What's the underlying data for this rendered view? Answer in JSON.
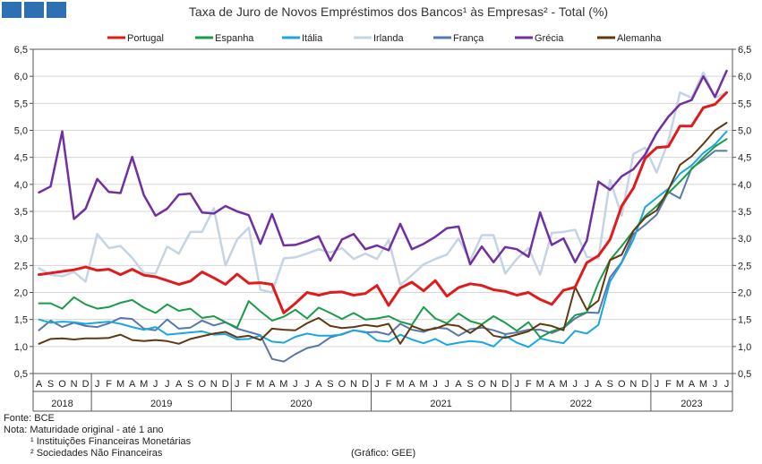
{
  "header": {
    "title": "Taxa de Juro de Novos Empréstimos dos Bancos¹ às Empresas² - Total (%)",
    "logo_color": "#2f6fb3"
  },
  "footer": {
    "source": "Fonte: BCE",
    "note": "Nota: Maturidade original - até 1 ano",
    "note1": "¹ Instituições Financeiras Monetárias",
    "note2": "² Sociedades Não Financeiras",
    "credit": "(Gráfico: GEE)"
  },
  "chart_data": {
    "type": "line",
    "title": "Taxa de Juro de Novos Empréstimos dos Bancos¹ às Empresas² - Total (%)",
    "ylim": [
      0.5,
      6.5
    ],
    "yticks": [
      "0,5",
      "1,0",
      "1,5",
      "2,0",
      "2,5",
      "3,0",
      "3,5",
      "4,0",
      "4,5",
      "5,0",
      "5,5",
      "6,0",
      "6,5"
    ],
    "grid": "horizontal",
    "legend_position": "top",
    "x": [
      "A",
      "S",
      "O",
      "N",
      "D",
      "J",
      "F",
      "M",
      "A",
      "M",
      "J",
      "J",
      "A",
      "S",
      "O",
      "N",
      "D",
      "J",
      "F",
      "M",
      "A",
      "M",
      "J",
      "J",
      "A",
      "S",
      "O",
      "N",
      "D",
      "J",
      "F",
      "M",
      "A",
      "M",
      "J",
      "J",
      "A",
      "S",
      "O",
      "N",
      "D",
      "J",
      "F",
      "M",
      "A",
      "M",
      "J",
      "J",
      "A",
      "S",
      "O",
      "N",
      "D",
      "J",
      "F",
      "M",
      "A",
      "M",
      "J",
      "J"
    ],
    "years": [
      {
        "label": "2018",
        "start": 0,
        "end": 4
      },
      {
        "label": "2019",
        "start": 5,
        "end": 16
      },
      {
        "label": "2020",
        "start": 17,
        "end": 28
      },
      {
        "label": "2021",
        "start": 29,
        "end": 40
      },
      {
        "label": "2022",
        "start": 41,
        "end": 52
      },
      {
        "label": "2023",
        "start": 53,
        "end": 59
      }
    ],
    "series": [
      {
        "name": "Portugal",
        "color": "#e01b1b",
        "width": 3,
        "values": [
          2.33,
          2.36,
          2.39,
          2.42,
          2.47,
          2.41,
          2.43,
          2.33,
          2.43,
          2.32,
          2.29,
          2.22,
          2.15,
          2.21,
          2.38,
          2.27,
          2.15,
          2.34,
          2.17,
          2.18,
          2.15,
          1.62,
          1.8,
          2.0,
          1.95,
          2.0,
          2.01,
          1.95,
          1.98,
          2.13,
          1.76,
          2.08,
          2.19,
          2.03,
          2.22,
          1.93,
          2.09,
          2.16,
          2.13,
          2.05,
          2.02,
          1.95,
          2.0,
          1.87,
          1.78,
          2.04,
          2.1,
          2.55,
          2.68,
          2.98,
          3.6,
          3.93,
          4.48,
          4.68,
          4.7,
          5.08,
          5.08,
          5.42,
          5.48,
          5.7
        ]
      },
      {
        "name": "Espanha",
        "color": "#1a9c48",
        "width": 2,
        "values": [
          1.8,
          1.8,
          1.7,
          1.91,
          1.78,
          1.7,
          1.73,
          1.81,
          1.86,
          1.72,
          1.62,
          1.78,
          1.66,
          1.7,
          1.53,
          1.56,
          1.45,
          1.35,
          1.84,
          1.65,
          1.48,
          1.55,
          1.68,
          1.52,
          1.72,
          1.62,
          1.51,
          1.62,
          1.5,
          1.52,
          1.56,
          1.46,
          1.4,
          1.73,
          1.52,
          1.43,
          1.61,
          1.47,
          1.41,
          1.56,
          1.44,
          1.29,
          1.45,
          1.17,
          1.28,
          1.35,
          1.58,
          1.63,
          2.18,
          2.6,
          2.86,
          3.14,
          3.41,
          3.6,
          3.84,
          4.05,
          4.28,
          4.5,
          4.7,
          4.84
        ]
      },
      {
        "name": "Itália",
        "color": "#1aa7e0",
        "width": 2,
        "values": [
          1.5,
          1.44,
          1.46,
          1.45,
          1.42,
          1.44,
          1.46,
          1.42,
          1.36,
          1.31,
          1.36,
          1.22,
          1.24,
          1.26,
          1.28,
          1.22,
          1.23,
          1.13,
          1.14,
          1.2,
          1.09,
          1.07,
          1.18,
          1.24,
          1.2,
          1.2,
          1.22,
          1.3,
          1.27,
          1.11,
          1.09,
          1.22,
          1.13,
          1.06,
          1.14,
          1.03,
          1.07,
          1.1,
          1.08,
          1.0,
          1.2,
          1.07,
          0.99,
          1.15,
          1.1,
          1.06,
          1.29,
          1.24,
          1.4,
          2.2,
          2.55,
          2.98,
          3.58,
          3.75,
          3.92,
          4.2,
          4.35,
          4.58,
          4.74,
          4.98
        ]
      },
      {
        "name": "Irlanda",
        "color": "#c5d4e4",
        "width": 2.5,
        "values": [
          2.45,
          2.33,
          2.3,
          2.38,
          2.2,
          3.08,
          2.82,
          2.86,
          2.64,
          2.36,
          2.35,
          2.85,
          2.72,
          3.12,
          3.12,
          3.56,
          2.5,
          2.98,
          3.2,
          2.05,
          2.0,
          2.63,
          2.65,
          2.72,
          2.8,
          2.74,
          2.82,
          2.62,
          2.72,
          2.62,
          2.97,
          2.14,
          2.32,
          2.52,
          2.62,
          2.7,
          3.0,
          2.59,
          3.06,
          3.06,
          2.35,
          2.62,
          2.82,
          2.33,
          3.1,
          3.12,
          3.16,
          2.66,
          2.63,
          4.08,
          3.42,
          4.56,
          4.68,
          4.22,
          4.8,
          5.7,
          5.6,
          6.07,
          5.6,
          5.7
        ]
      },
      {
        "name": "França",
        "color": "#5878a8",
        "width": 2,
        "values": [
          1.3,
          1.48,
          1.36,
          1.44,
          1.38,
          1.36,
          1.43,
          1.53,
          1.51,
          1.33,
          1.3,
          1.5,
          1.33,
          1.35,
          1.48,
          1.39,
          1.45,
          1.33,
          1.27,
          1.21,
          0.77,
          0.72,
          0.86,
          0.97,
          1.02,
          1.17,
          1.23,
          1.3,
          1.26,
          1.27,
          1.22,
          1.42,
          1.31,
          1.27,
          1.35,
          1.33,
          1.2,
          1.32,
          1.35,
          1.3,
          1.23,
          1.26,
          1.31,
          1.31,
          1.25,
          1.34,
          1.52,
          1.63,
          1.62,
          2.28,
          2.56,
          3.08,
          3.25,
          3.44,
          3.86,
          3.74,
          4.3,
          4.45,
          4.62,
          4.62
        ]
      },
      {
        "name": "Grécia",
        "color": "#7030a0",
        "width": 2.5,
        "values": [
          3.85,
          3.96,
          4.98,
          3.36,
          3.55,
          4.1,
          3.86,
          3.84,
          4.51,
          3.8,
          3.42,
          3.55,
          3.81,
          3.83,
          3.48,
          3.46,
          3.6,
          3.5,
          3.43,
          2.9,
          3.45,
          2.87,
          2.88,
          2.95,
          3.04,
          2.59,
          2.98,
          3.08,
          2.8,
          2.87,
          2.78,
          3.27,
          2.8,
          2.9,
          3.03,
          3.19,
          3.22,
          2.52,
          2.85,
          2.56,
          2.84,
          2.8,
          2.66,
          3.48,
          2.88,
          3.0,
          2.56,
          2.96,
          4.05,
          3.9,
          4.15,
          4.28,
          4.55,
          4.95,
          5.25,
          5.48,
          5.56,
          6.0,
          5.62,
          6.1
        ]
      },
      {
        "name": "Alemanha",
        "color": "#603913",
        "width": 2,
        "values": [
          1.05,
          1.14,
          1.15,
          1.13,
          1.15,
          1.15,
          1.16,
          1.22,
          1.12,
          1.1,
          1.12,
          1.1,
          1.05,
          1.14,
          1.19,
          1.24,
          1.27,
          1.17,
          1.2,
          1.12,
          1.33,
          1.31,
          1.3,
          1.43,
          1.53,
          1.38,
          1.34,
          1.36,
          1.4,
          1.37,
          1.42,
          1.05,
          1.38,
          1.3,
          1.33,
          1.41,
          1.38,
          1.25,
          1.4,
          1.2,
          1.16,
          1.22,
          1.28,
          1.42,
          1.38,
          1.3,
          2.1,
          1.68,
          1.85,
          2.6,
          2.7,
          3.14,
          3.38,
          3.52,
          3.9,
          4.36,
          4.52,
          4.75,
          5.0,
          5.14
        ]
      }
    ]
  }
}
